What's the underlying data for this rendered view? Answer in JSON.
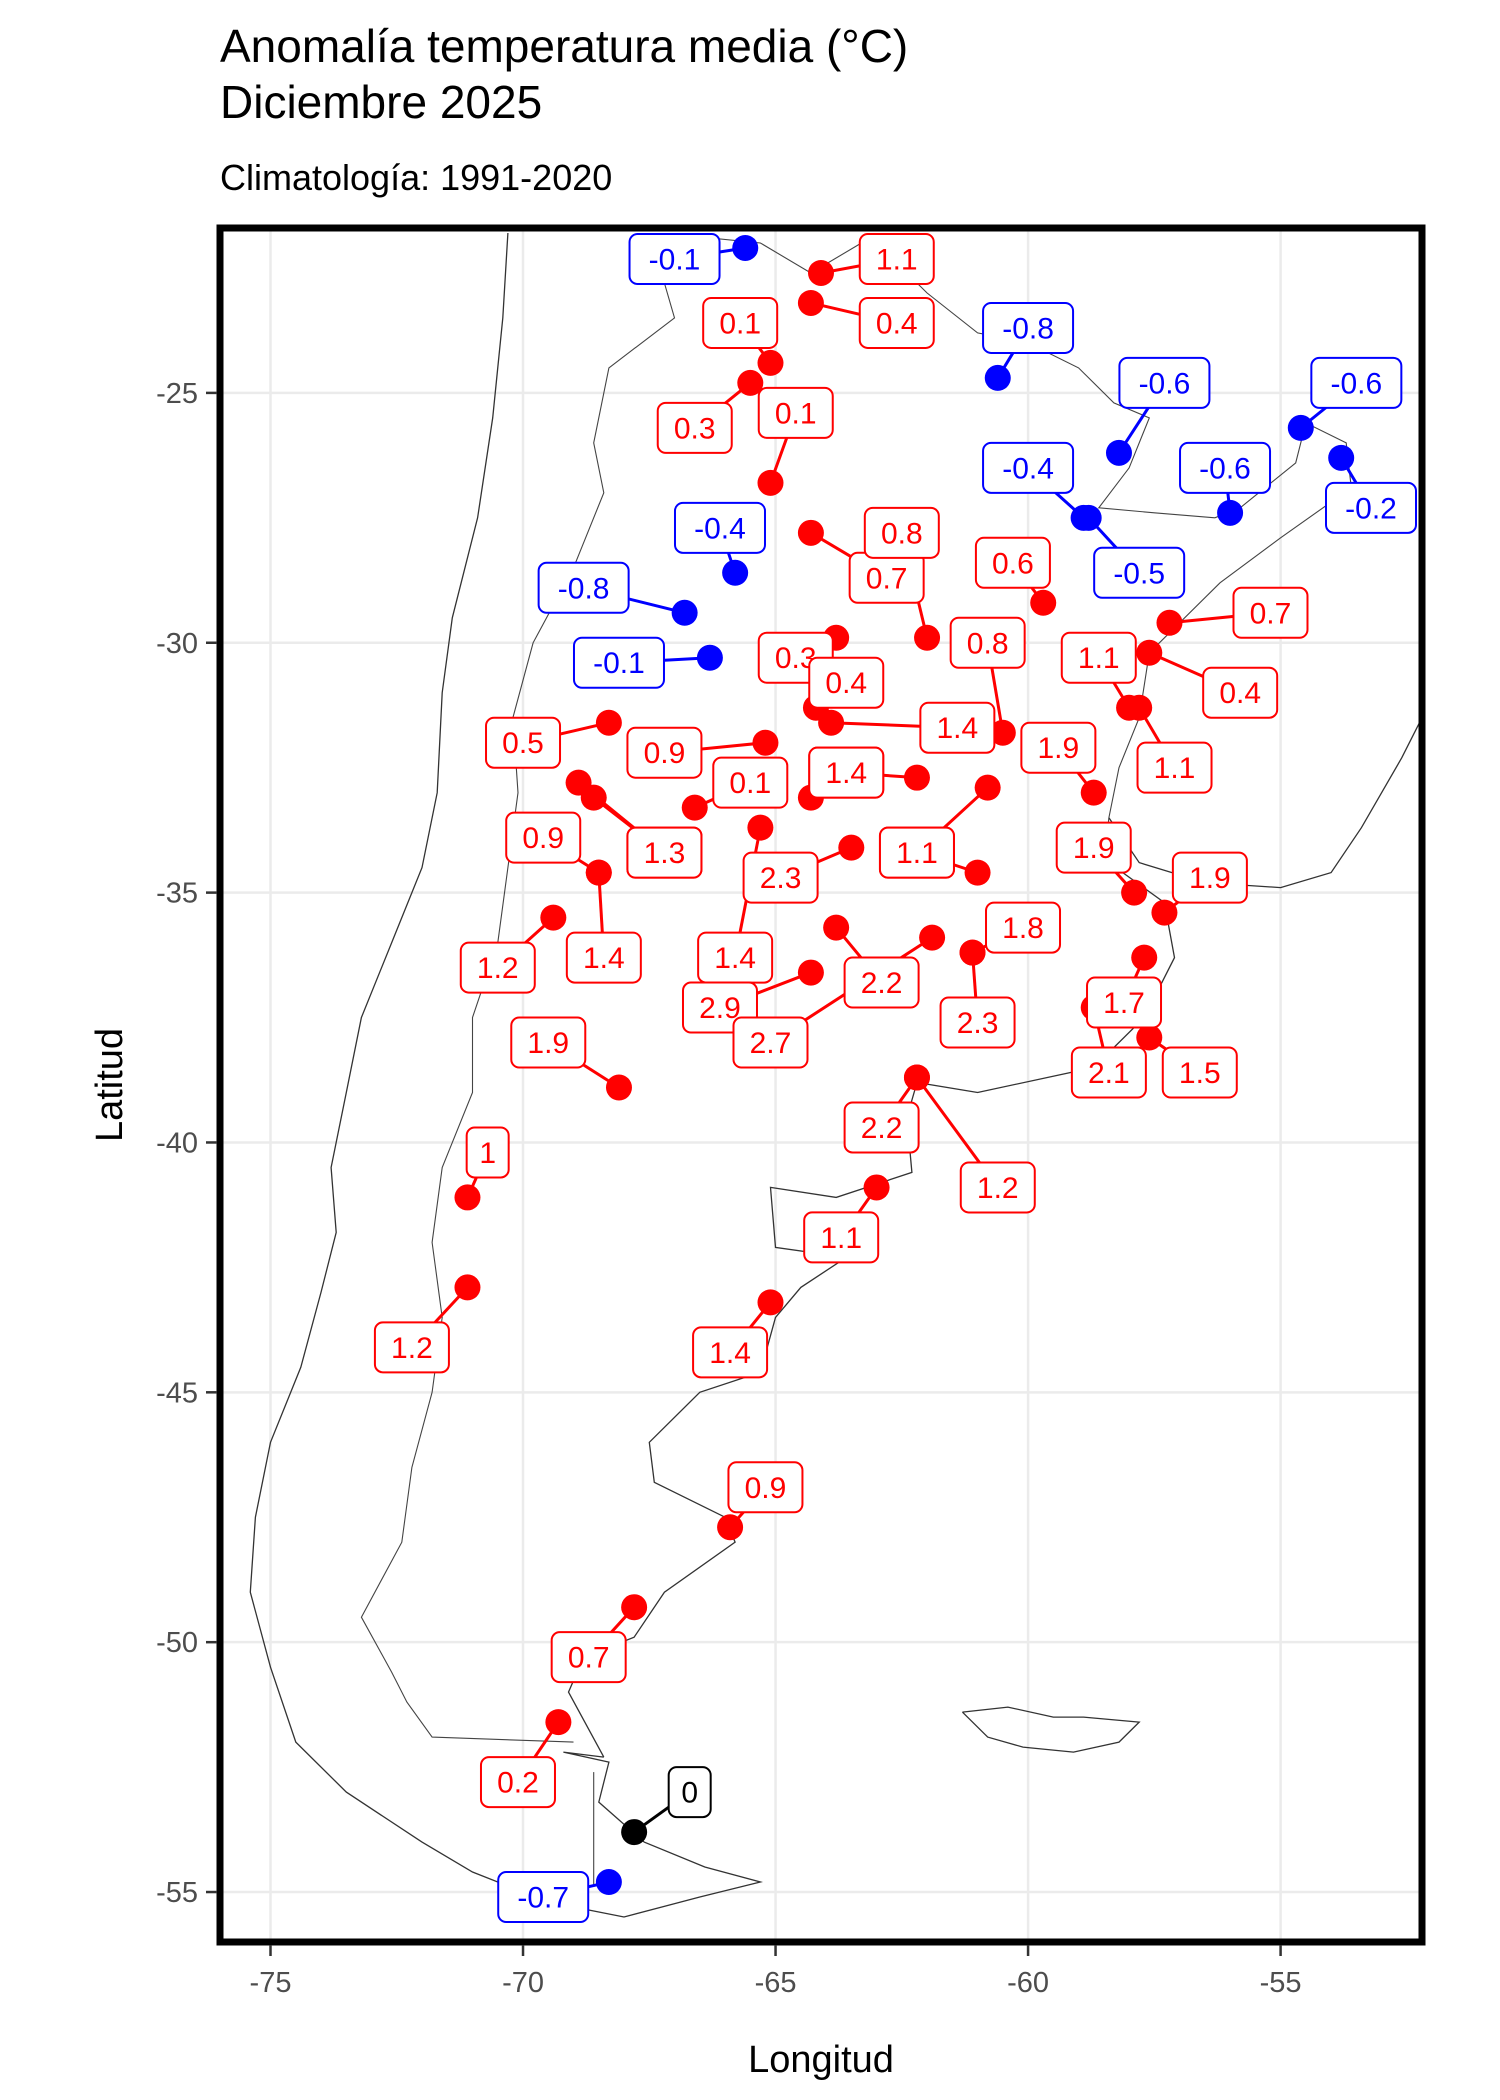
{
  "chart_data": {
    "type": "scatter",
    "title_line1": "Anomalía temperatura media (°C)",
    "title_line2": "Diciembre 2025",
    "subtitle": "Climatología: 1991-2020",
    "xlabel": "Longitud",
    "ylabel": "Latitud",
    "xlim": [
      -76,
      -52.2
    ],
    "ylim": [
      -56,
      -21.7
    ],
    "x_ticks": [
      -75,
      -70,
      -65,
      -60,
      -55
    ],
    "y_ticks": [
      -55,
      -50,
      -45,
      -40,
      -35,
      -30,
      -25
    ],
    "colors": {
      "positive": "#ff0000",
      "negative": "#0000ff",
      "zero": "#000000"
    },
    "grid": true,
    "stations": [
      {
        "lon": -65.6,
        "lat": -22.1,
        "value": "-0.1",
        "lx": -67.0,
        "ly": -21.9
      },
      {
        "lon": -64.1,
        "lat": -22.6,
        "value": "1.1",
        "lx": -62.6,
        "ly": -21.9
      },
      {
        "lon": -64.3,
        "lat": -23.2,
        "value": "0.4",
        "lx": -62.6,
        "ly": -23.6
      },
      {
        "lon": -65.1,
        "lat": -24.4,
        "value": "0.1",
        "lx": -65.7,
        "ly": -23.6
      },
      {
        "lon": -65.5,
        "lat": -24.8,
        "value": "0.3",
        "lx": -66.6,
        "ly": -25.7
      },
      {
        "lon": -65.1,
        "lat": -26.8,
        "value": "0.1",
        "lx": -64.6,
        "ly": -25.4
      },
      {
        "lon": -60.6,
        "lat": -24.7,
        "value": "-0.8",
        "lx": -60.0,
        "ly": -23.7
      },
      {
        "lon": -58.2,
        "lat": -26.2,
        "value": "-0.6",
        "lx": -57.3,
        "ly": -24.8
      },
      {
        "lon": -54.6,
        "lat": -25.7,
        "value": "-0.6",
        "lx": -53.5,
        "ly": -24.8
      },
      {
        "lon": -53.8,
        "lat": -26.3,
        "value": "-0.2",
        "lx": -53.0,
        "ly": -27.3
      },
      {
        "lon": -56.0,
        "lat": -27.4,
        "value": "-0.6",
        "lx": -56.1,
        "ly": -26.5
      },
      {
        "lon": -58.9,
        "lat": -27.5,
        "value": "-0.4",
        "lx": -60.0,
        "ly": -26.5
      },
      {
        "lon": -58.8,
        "lat": -27.5,
        "value": "-0.5",
        "lx": -57.8,
        "ly": -28.6
      },
      {
        "lon": -64.3,
        "lat": -27.8,
        "value": "0.7",
        "lx": -62.8,
        "ly": -28.7
      },
      {
        "lon": -62.0,
        "lat": -29.9,
        "value": "0.8",
        "lx": -62.5,
        "ly": -27.8
      },
      {
        "lon": -59.7,
        "lat": -29.2,
        "value": "0.6",
        "lx": -60.3,
        "ly": -28.4
      },
      {
        "lon": -65.8,
        "lat": -28.6,
        "value": "-0.4",
        "lx": -66.1,
        "ly": -27.7
      },
      {
        "lon": -66.8,
        "lat": -29.4,
        "value": "-0.8",
        "lx": -68.8,
        "ly": -28.9
      },
      {
        "lon": -66.3,
        "lat": -30.3,
        "value": "-0.1",
        "lx": -68.1,
        "ly": -30.4
      },
      {
        "lon": -63.8,
        "lat": -29.9,
        "value": "0.3",
        "lx": -64.6,
        "ly": -30.3
      },
      {
        "lon": -57.2,
        "lat": -29.6,
        "value": "0.7",
        "lx": -55.2,
        "ly": -29.4
      },
      {
        "lon": -57.6,
        "lat": -30.2,
        "value": "0.4",
        "lx": -55.8,
        "ly": -31.0
      },
      {
        "lon": -64.2,
        "lat": -31.3,
        "value": "0.4",
        "lx": -63.6,
        "ly": -30.8
      },
      {
        "lon": -63.9,
        "lat": -31.6,
        "value": "1.4",
        "lx": -61.4,
        "ly": -31.7
      },
      {
        "lon": -60.5,
        "lat": -31.8,
        "value": "0.8",
        "lx": -60.8,
        "ly": -30.0
      },
      {
        "lon": -58.0,
        "lat": -31.3,
        "value": "1.1",
        "lx": -58.6,
        "ly": -30.3
      },
      {
        "lon": -57.8,
        "lat": -31.3,
        "value": "1.1",
        "lx": -57.1,
        "ly": -32.5
      },
      {
        "lon": -58.7,
        "lat": -33.0,
        "value": "1.9",
        "lx": -59.4,
        "ly": -32.1
      },
      {
        "lon": -68.3,
        "lat": -31.6,
        "value": "0.5",
        "lx": -70.0,
        "ly": -32.0
      },
      {
        "lon": -65.2,
        "lat": -32.0,
        "value": "0.9",
        "lx": -67.2,
        "ly": -32.2
      },
      {
        "lon": -66.6,
        "lat": -33.3,
        "value": "0.1",
        "lx": -65.5,
        "ly": -32.8
      },
      {
        "lon": -64.3,
        "lat": -33.1,
        "value": "1.4",
        "lx": -63.6,
        "ly": -32.6
      },
      {
        "lon": -62.2,
        "lat": -32.7,
        "value": "1.4",
        "lx": -63.6,
        "ly": -32.6
      },
      {
        "lon": -68.9,
        "lat": -32.8,
        "value": "1.3",
        "lx": -67.2,
        "ly": -34.2
      },
      {
        "lon": -68.6,
        "lat": -33.1,
        "value": "1.3",
        "lx": -67.2,
        "ly": -34.2
      },
      {
        "lon": -60.8,
        "lat": -32.9,
        "value": "1.1",
        "lx": -62.2,
        "ly": -34.2
      },
      {
        "lon": -68.5,
        "lat": -34.6,
        "value": "0.9",
        "lx": -69.6,
        "ly": -33.9
      },
      {
        "lon": -68.5,
        "lat": -34.6,
        "value": "1.4",
        "lx": -68.4,
        "ly": -36.3
      },
      {
        "lon": -65.3,
        "lat": -33.7,
        "value": "1.4",
        "lx": -65.8,
        "ly": -36.3
      },
      {
        "lon": -63.5,
        "lat": -34.1,
        "value": "2.3",
        "lx": -64.9,
        "ly": -34.7
      },
      {
        "lon": -63.8,
        "lat": -35.7,
        "value": "2.2",
        "lx": -62.9,
        "ly": -36.8
      },
      {
        "lon": -61.0,
        "lat": -34.6,
        "value": "1.1",
        "lx": -62.2,
        "ly": -34.2
      },
      {
        "lon": -57.9,
        "lat": -35.0,
        "value": "1.9",
        "lx": -58.7,
        "ly": -34.1
      },
      {
        "lon": -57.3,
        "lat": -35.4,
        "value": "1.9",
        "lx": -56.4,
        "ly": -34.7
      },
      {
        "lon": -69.4,
        "lat": -35.5,
        "value": "1.2",
        "lx": -70.5,
        "ly": -36.5
      },
      {
        "lon": -64.3,
        "lat": -36.6,
        "value": "2.9",
        "lx": -66.1,
        "ly": -37.3
      },
      {
        "lon": -61.9,
        "lat": -35.9,
        "value": "2.7",
        "lx": -65.1,
        "ly": -38.0
      },
      {
        "lon": -61.1,
        "lat": -36.2,
        "value": "1.8",
        "lx": -60.1,
        "ly": -35.7
      },
      {
        "lon": -61.1,
        "lat": -36.2,
        "value": "2.3",
        "lx": -61.0,
        "ly": -37.6
      },
      {
        "lon": -57.7,
        "lat": -36.3,
        "value": "1.7",
        "lx": -58.1,
        "ly": -37.2
      },
      {
        "lon": -58.7,
        "lat": -37.3,
        "value": "2.1",
        "lx": -58.4,
        "ly": -38.6
      },
      {
        "lon": -57.6,
        "lat": -37.9,
        "value": "1.5",
        "lx": -56.6,
        "ly": -38.6
      },
      {
        "lon": -68.1,
        "lat": -38.9,
        "value": "1.9",
        "lx": -69.5,
        "ly": -38.0
      },
      {
        "lon": -62.2,
        "lat": -38.7,
        "value": "2.2",
        "lx": -62.9,
        "ly": -39.7
      },
      {
        "lon": -62.2,
        "lat": -38.7,
        "value": "1.2",
        "lx": -60.6,
        "ly": -40.9
      },
      {
        "lon": -71.1,
        "lat": -41.1,
        "value": "1",
        "lx": -70.7,
        "ly": -40.2
      },
      {
        "lon": -63.0,
        "lat": -40.9,
        "value": "1.1",
        "lx": -63.7,
        "ly": -41.9
      },
      {
        "lon": -71.1,
        "lat": -42.9,
        "value": "1.2",
        "lx": -72.2,
        "ly": -44.1
      },
      {
        "lon": -65.1,
        "lat": -43.2,
        "value": "1.4",
        "lx": -65.9,
        "ly": -44.2
      },
      {
        "lon": -65.9,
        "lat": -47.7,
        "value": "0.9",
        "lx": -65.2,
        "ly": -46.9
      },
      {
        "lon": -67.8,
        "lat": -49.3,
        "value": "0.7",
        "lx": -68.7,
        "ly": -50.3
      },
      {
        "lon": -69.3,
        "lat": -51.6,
        "value": "0.2",
        "lx": -70.1,
        "ly": -52.8
      },
      {
        "lon": -67.8,
        "lat": -53.8,
        "value": "0",
        "lx": -66.7,
        "ly": -53.0
      },
      {
        "lon": -68.3,
        "lat": -54.8,
        "value": "-0.7",
        "lx": -69.6,
        "ly": -55.1
      }
    ]
  }
}
